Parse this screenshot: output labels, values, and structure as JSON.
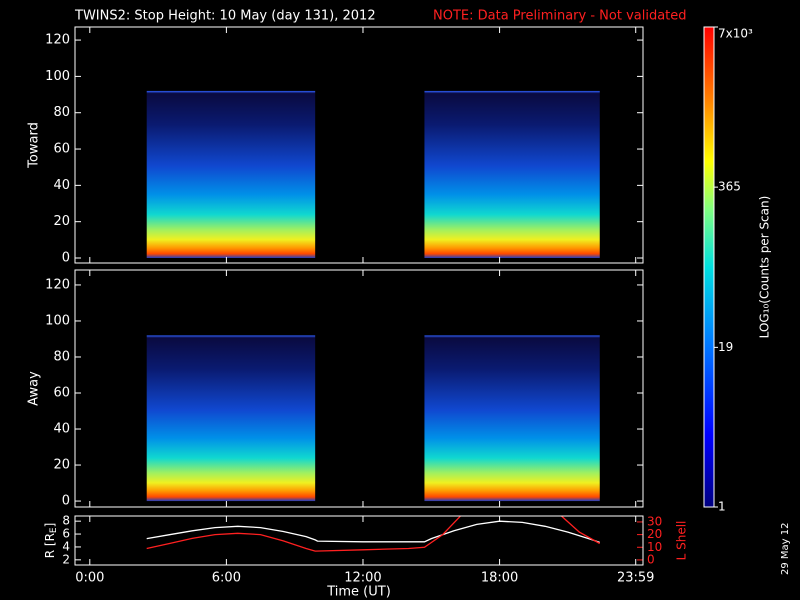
{
  "title": "TWINS2: Stop Height: 10 May (day 131), 2012",
  "note": "NOTE: Data Preliminary - Not validated",
  "date_stamp": "29 May 12",
  "colorbar": {
    "label": "LOG₁₀(Counts per Scan)",
    "scale": "log",
    "zlim": [
      1,
      7000
    ],
    "ticks": [
      {
        "value": 7000,
        "label": "7x10³"
      },
      365,
      19,
      1
    ]
  },
  "chart_data": [
    {
      "type": "spectrogram",
      "ylabel": "Toward",
      "xlim": [
        -0.65,
        24.3
      ],
      "xticks": [
        0,
        6,
        12,
        18,
        {
          "value": 23.98,
          "label": "23:59"
        }
      ],
      "ylim": [
        -2.75,
        127.2
      ],
      "yticks": [
        0,
        20,
        40,
        60,
        80,
        100,
        120
      ],
      "scans": [
        {
          "start": 2.5,
          "end": 9.9,
          "top": 92
        },
        {
          "start": 14.7,
          "end": 22.4,
          "top": 92
        }
      ]
    },
    {
      "type": "spectrogram",
      "ylabel": "Away",
      "xlim": [
        -0.65,
        24.3
      ],
      "xticks": [
        0,
        6,
        12,
        18,
        {
          "value": 23.98,
          "label": "23:59"
        }
      ],
      "ylim": [
        -3.3,
        128.3
      ],
      "yticks": [
        0,
        20,
        40,
        60,
        80,
        100,
        120
      ],
      "scans": [
        {
          "start": 2.5,
          "end": 9.9,
          "top": 92
        },
        {
          "start": 14.7,
          "end": 22.4,
          "top": 92
        }
      ]
    },
    {
      "type": "line",
      "xlabel": "Time (UT)",
      "ylabel": "R [R",
      "ylabel_sub": "E",
      "ylabel_end": "]",
      "y2label": "L Shell",
      "xlim": [
        -0.65,
        24.3
      ],
      "xticks": [
        {
          "value": 0,
          "label": "0:00"
        },
        {
          "value": 6,
          "label": "6:00"
        },
        {
          "value": 12,
          "label": "12:00"
        },
        {
          "value": 18,
          "label": "18:00"
        },
        {
          "value": 23.98,
          "label": "23:59"
        }
      ],
      "ylim": [
        1.2,
        8.8
      ],
      "yticks": [
        2,
        4,
        6,
        8
      ],
      "y2lim": [
        -4,
        34.7
      ],
      "y2ticks": [
        0,
        10,
        20,
        30
      ],
      "series": [
        {
          "name": "R",
          "color": "#ffffff",
          "axis": "y",
          "x": [
            2.5,
            3.5,
            4.5,
            5.5,
            6.5,
            7.5,
            8.5,
            9.5,
            9.9,
            10,
            12,
            14,
            14.7,
            15,
            16,
            17,
            18,
            19,
            20,
            21,
            22,
            22.4
          ],
          "values": [
            5.3,
            5.9,
            6.5,
            7.0,
            7.2,
            7.0,
            6.4,
            5.6,
            5.1,
            4.9,
            4.8,
            4.8,
            4.8,
            5.3,
            6.5,
            7.5,
            8.0,
            7.8,
            7.2,
            6.3,
            5.2,
            4.7
          ]
        },
        {
          "name": "L Shell",
          "color": "#ff2020",
          "axis": "y2",
          "x": [
            2.5,
            3.5,
            4.5,
            5.5,
            6.5,
            7.5,
            8.5,
            9.5,
            9.9,
            12,
            14,
            14.7,
            15.5,
            16.3,
            17,
            20.7,
            21.5,
            22.4
          ],
          "values": [
            9,
            13,
            17,
            20,
            21,
            20,
            15,
            9,
            7,
            8,
            9,
            10,
            20,
            35,
            null,
            35,
            22,
            13
          ]
        }
      ]
    }
  ]
}
